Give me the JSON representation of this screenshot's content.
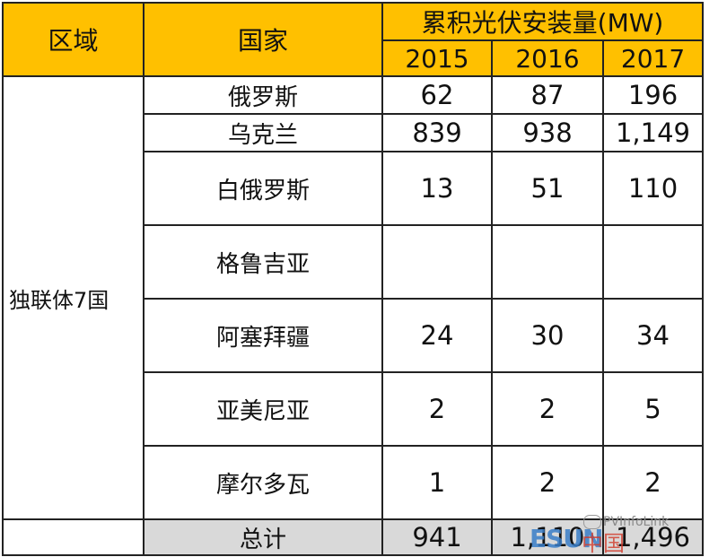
{
  "table": {
    "header": {
      "region": "区域",
      "country": "国家",
      "group_title": "累积光伏安装量(MW)",
      "years": [
        "2015",
        "2016",
        "2017"
      ]
    },
    "region_name": "独联体7国",
    "rows": [
      {
        "country": "俄罗斯",
        "v2015": "62",
        "v2016": "87",
        "v2017": "196"
      },
      {
        "country": "乌克兰",
        "v2015": "839",
        "v2016": "938",
        "v2017": "1,149"
      },
      {
        "country": "白俄罗斯",
        "v2015": "13",
        "v2016": "51",
        "v2017": "110"
      },
      {
        "country": "格鲁吉亚",
        "v2015": "",
        "v2016": "",
        "v2017": ""
      },
      {
        "country": "阿塞拜疆",
        "v2015": "24",
        "v2016": "30",
        "v2017": "34"
      },
      {
        "country": "亚美尼亚",
        "v2015": "2",
        "v2016": "2",
        "v2017": "5"
      },
      {
        "country": "摩尔多瓦",
        "v2015": "1",
        "v2016": "2",
        "v2017": "2"
      }
    ],
    "total": {
      "label": "总计",
      "v2015": "941",
      "v2016": "1,110",
      "v2017": "1,496"
    }
  },
  "watermark": {
    "brand": "ESUN",
    "cn": "中国",
    "text": "PVInfoLink"
  },
  "colors": {
    "header_bg": "#FFC000",
    "total_bg": "#D9D9D9",
    "border": "#222222"
  }
}
